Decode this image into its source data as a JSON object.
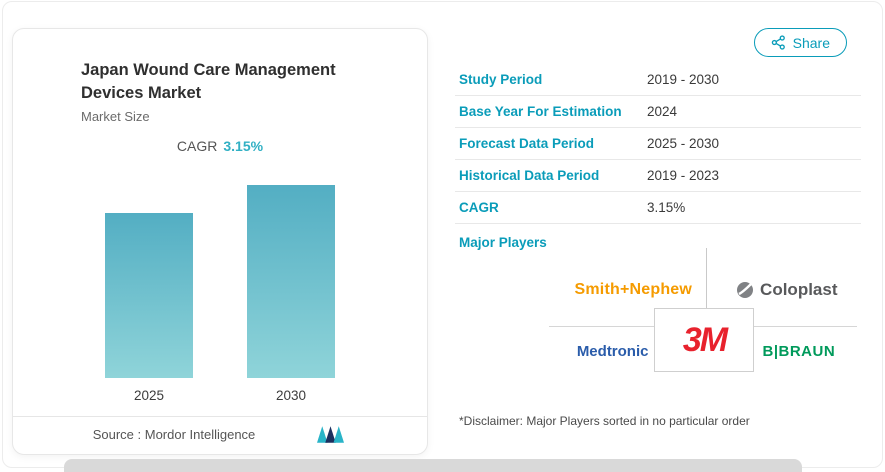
{
  "share_button": {
    "label": "Share"
  },
  "card": {
    "title": "Japan Wound Care Management Devices Market",
    "subtitle": "Market Size",
    "cagr_label": "CAGR",
    "cagr_value": "3.15%",
    "source_label": "Source :",
    "source_name": "Mordor Intelligence"
  },
  "chart_data": {
    "type": "bar",
    "title": "Japan Wound Care Management Devices Market - Market Size",
    "categories": [
      "2025",
      "2030"
    ],
    "values": [
      100,
      117
    ],
    "value_note": "No numeric axis shown; 2030 bar is ~17% taller than 2025, consistent with CAGR 3.15% over 2025-2030",
    "cagr": "3.15%",
    "ylabel": "",
    "xlabel": "",
    "legend": false,
    "grid": false,
    "bar_color_top": "#53aec3",
    "bar_color_bottom": "#8fd4d9"
  },
  "facts": {
    "rows": [
      {
        "label": "Study Period",
        "value": "2019 - 2030"
      },
      {
        "label": "Base Year For Estimation",
        "value": "2024"
      },
      {
        "label": "Forecast Data Period",
        "value": "2025 - 2030"
      },
      {
        "label": "Historical Data Period",
        "value": "2019 - 2023"
      },
      {
        "label": "CAGR",
        "value": "3.15%"
      }
    ],
    "major_players_label": "Major Players",
    "disclaimer": "*Disclaimer: Major Players sorted in no particular order"
  },
  "major_players": [
    {
      "name": "Smith+Nephew"
    },
    {
      "name": "Coloplast"
    },
    {
      "name": "Medtronic"
    },
    {
      "name": "3M"
    },
    {
      "name": "B|BRAUN"
    }
  ],
  "colors": {
    "accent_teal": "#0a9cb9",
    "cagr_teal": "#31b0c4",
    "smith_nephew_orange": "#f59b00",
    "coloplast_gray": "#58595b",
    "medtronic_blue": "#2a5caa",
    "mmm_red": "#e8222d",
    "bbraun_green": "#009a5b",
    "peek_bar_gray": "#d9d9d9"
  }
}
